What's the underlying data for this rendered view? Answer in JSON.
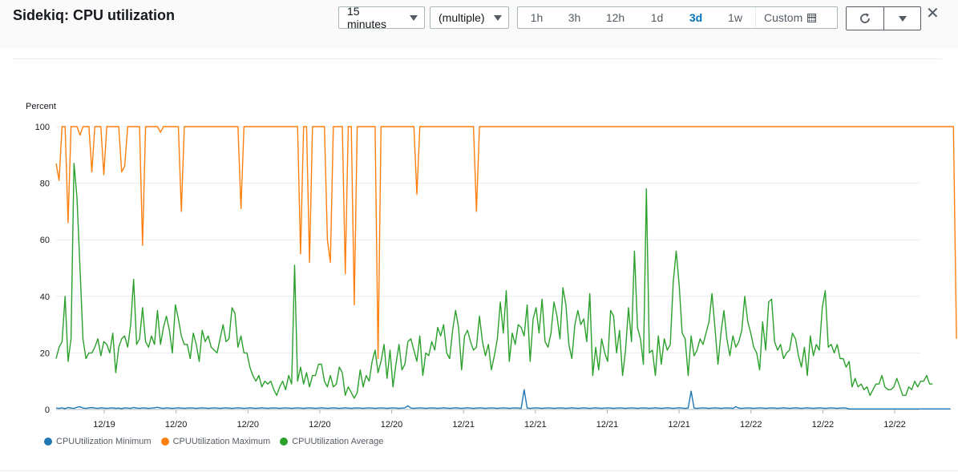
{
  "header": {
    "title": "Sidekiq: CPU utilization",
    "period_select": "15 minutes",
    "stat_select": "(multiple)",
    "ranges": [
      {
        "label": "1h",
        "active": false
      },
      {
        "label": "3h",
        "active": false
      },
      {
        "label": "12h",
        "active": false
      },
      {
        "label": "1d",
        "active": false
      },
      {
        "label": "3d",
        "active": true
      },
      {
        "label": "1w",
        "active": false
      }
    ],
    "custom_label": "Custom",
    "close_symbol": "✕"
  },
  "colors": {
    "minimum": "#1f77b4",
    "maximum": "#ff7f0e",
    "average": "#2ca02c",
    "active_range": "#0073bb"
  },
  "chart_data": {
    "type": "line",
    "ylabel": "Percent",
    "ylim": [
      0,
      100
    ],
    "yticks": [
      0,
      20,
      40,
      60,
      80,
      100
    ],
    "xticks": [
      "12/19",
      "12/20",
      "12/20",
      "12/20",
      "12/20",
      "12/21",
      "12/21",
      "12/21",
      "12/21",
      "12/22",
      "12/22",
      "12/22"
    ],
    "xlim": [
      0,
      288
    ],
    "x_step": 1,
    "grid": "horizontal",
    "legend_position": "bottom-left",
    "series": [
      {
        "name": "CPUUtilization Minimum",
        "color": "#1f77b4",
        "values": [
          0.5,
          0.4,
          0.6,
          0.3,
          0.7,
          0.5,
          0.4,
          0.8,
          1,
          0.5,
          0.4,
          0.6,
          0.7,
          0.5,
          0.4,
          0.6,
          0.5,
          0.4,
          0.5,
          0.6,
          0.4,
          0.5,
          0.3,
          0.6,
          0.5,
          0.4,
          0.7,
          0.5,
          0.4,
          0.6,
          0.5,
          0.4,
          0.5,
          0.6,
          0.8,
          0.5,
          0.4,
          0.6,
          0.5,
          0.4,
          0.5,
          0.6,
          0.5,
          0.4,
          0.5,
          0.6,
          0.5,
          0.4,
          0.5,
          0.6,
          0.5,
          0.4,
          0.5,
          0.6,
          0.5,
          0.4,
          0.5,
          0.6,
          0.5,
          0.4,
          0.5,
          0.6,
          0.5,
          0.4,
          0.5,
          0.6,
          0.5,
          0.4,
          0.5,
          0.6,
          0.5,
          0.4,
          0.5,
          0.6,
          0.5,
          0.4,
          0.5,
          0.6,
          0.5,
          0.4,
          0.5,
          0.6,
          0.5,
          0.4,
          0.5,
          0.6,
          0.5,
          0.4,
          0.5,
          0.6,
          0.5,
          0.4,
          0.5,
          0.6,
          0.5,
          0.4,
          0.5,
          0.6,
          0.5,
          0.4,
          0.5,
          0.6,
          0.5,
          0.4,
          0.5,
          0.6,
          0.5,
          0.4,
          0.5,
          0.6,
          0.5,
          0.4,
          0.5,
          0.6,
          0.5,
          0.4,
          0.5,
          0.6,
          1.3,
          0.5,
          0.4,
          0.5,
          0.6,
          0.5,
          0.4,
          0.5,
          0.6,
          0.5,
          0.4,
          0.5,
          0.6,
          0.5,
          0.4,
          0.5,
          0.6,
          0.5,
          0.4,
          0.5,
          0.6,
          0.5,
          0.4,
          0.5,
          0.6,
          0.5,
          0.4,
          0.5,
          0.6,
          0.5,
          0.4,
          0.5,
          0.6,
          0.5,
          0.4,
          0.5,
          0.6,
          0.5,
          0.4,
          7,
          0.5,
          0.4,
          0.5,
          0.6,
          0.5,
          0.4,
          0.5,
          0.6,
          0.5,
          0.4,
          0.5,
          0.6,
          0.5,
          0.4,
          0.5,
          0.6,
          0.5,
          0.4,
          0.5,
          0.6,
          0.5,
          0.4,
          0.5,
          0.6,
          0.5,
          0.4,
          0.5,
          0.6,
          0.5,
          0.4,
          0.5,
          0.6,
          0.5,
          0.4,
          0.5,
          0.6,
          0.5,
          0.4,
          0.5,
          0.6,
          0.5,
          0.4,
          0.5,
          0.6,
          0.5,
          0.4,
          0.5,
          0.6,
          0.5,
          0.4,
          0.5,
          0.6,
          0.5,
          0.4,
          0.5,
          6.5,
          0.5,
          0.4,
          0.5,
          0.6,
          0.5,
          0.4,
          0.5,
          0.6,
          0.5,
          0.4,
          0.5,
          0.6,
          0.5,
          0.4,
          1,
          0.5,
          0.4,
          0.5,
          0.6,
          0.5,
          0.4,
          0.5,
          0.6,
          0.5,
          0.4,
          0.5,
          0.6,
          0.5,
          0.4,
          0.5,
          0.6,
          0.5,
          0.4,
          0.5,
          0.6,
          0.5,
          0.4,
          0.5,
          0.6,
          0.5,
          0.4,
          0.5,
          0.6,
          0.5,
          0.4,
          0.5,
          0.6,
          0.5,
          0.4,
          0.5,
          0.6,
          0.5,
          0.2,
          0.2,
          0.2,
          0.2,
          0.2,
          0.2,
          0.2,
          0.2,
          0.2,
          0.2,
          0.2,
          0.2,
          0.2,
          0.2,
          0.2,
          0.2,
          0.2,
          0.2,
          0.2,
          0.2,
          0.2,
          0.2,
          0.2,
          0.2,
          0.2,
          0.2,
          0.2,
          0.2,
          0.2,
          0.2,
          0.2,
          0.2,
          0.2,
          0.2,
          0.2
        ]
      },
      {
        "name": "CPUUtilization Maximum",
        "color": "#ff7f0e",
        "values": [
          87,
          81,
          100,
          100,
          66,
          100,
          100,
          100,
          97,
          100,
          100,
          100,
          84,
          100,
          100,
          100,
          83,
          100,
          100,
          100,
          100,
          100,
          84,
          86,
          100,
          100,
          100,
          100,
          100,
          58,
          100,
          100,
          100,
          100,
          100,
          98,
          100,
          100,
          100,
          100,
          100,
          100,
          70,
          100,
          100,
          100,
          100,
          100,
          100,
          100,
          100,
          100,
          100,
          100,
          100,
          100,
          100,
          100,
          100,
          100,
          100,
          100,
          71,
          100,
          100,
          100,
          100,
          100,
          100,
          100,
          100,
          100,
          100,
          100,
          100,
          100,
          100,
          100,
          100,
          100,
          100,
          100,
          55,
          100,
          100,
          52,
          100,
          100,
          100,
          100,
          100,
          60,
          52,
          100,
          100,
          100,
          100,
          48,
          100,
          100,
          37,
          100,
          100,
          100,
          100,
          100,
          100,
          100,
          18,
          100,
          100,
          100,
          100,
          100,
          100,
          100,
          100,
          100,
          100,
          100,
          100,
          76,
          100,
          100,
          100,
          100,
          100,
          100,
          100,
          100,
          100,
          100,
          100,
          100,
          100,
          100,
          100,
          100,
          100,
          100,
          100,
          70,
          100,
          100,
          100,
          100,
          100,
          100,
          100,
          100,
          100,
          100,
          100,
          100,
          100,
          100,
          100,
          100,
          100,
          100,
          100,
          100,
          100,
          100,
          100,
          100,
          100,
          100,
          100,
          100,
          100,
          100,
          100,
          100,
          100,
          100,
          100,
          100,
          100,
          100,
          100,
          100,
          100,
          100,
          100,
          100,
          100,
          100,
          100,
          100,
          100,
          100,
          100,
          100,
          100,
          100,
          100,
          100,
          100,
          100,
          100,
          100,
          100,
          100,
          100,
          100,
          100,
          100,
          100,
          100,
          100,
          100,
          100,
          100,
          100,
          100,
          100,
          100,
          100,
          100,
          100,
          100,
          100,
          100,
          100,
          100,
          100,
          100,
          100,
          100,
          100,
          100,
          100,
          100,
          100,
          100,
          100,
          100,
          100,
          100,
          100,
          100,
          100,
          100,
          100,
          100,
          100,
          100,
          100,
          100,
          100,
          100,
          100,
          100,
          100,
          100,
          100,
          100,
          100,
          100,
          100,
          100,
          100,
          100,
          100,
          100,
          100,
          100,
          100,
          100,
          100,
          100,
          100,
          100,
          100,
          100,
          100,
          100,
          100,
          100,
          100,
          100,
          100,
          100,
          100,
          100,
          100,
          100,
          100,
          100,
          100,
          100,
          100,
          100,
          100,
          100,
          100,
          100,
          100,
          100,
          100,
          100,
          25
        ]
      },
      {
        "name": "CPUUtilization Average",
        "color": "#2ca02c",
        "values": [
          18,
          22,
          24,
          40,
          17,
          25,
          87,
          75,
          50,
          25,
          18,
          20,
          20,
          22,
          25,
          19,
          24,
          23,
          20,
          27,
          13,
          22,
          25,
          26,
          22,
          30,
          46,
          23,
          25,
          36,
          24,
          22,
          26,
          23,
          35,
          23,
          29,
          33,
          28,
          20,
          37,
          32,
          26,
          23,
          23,
          18,
          27,
          23,
          17,
          28,
          24,
          26,
          22,
          21,
          20,
          25,
          30,
          24,
          25,
          36,
          34,
          22,
          26,
          20,
          20,
          15,
          12,
          10,
          12,
          8,
          10,
          9,
          10,
          7,
          5,
          8,
          10,
          7,
          12,
          9,
          51,
          10,
          15,
          9,
          13,
          8,
          12,
          12,
          16,
          16,
          10,
          8,
          12,
          8,
          9,
          15,
          13,
          5,
          8,
          6,
          4,
          6,
          14,
          8,
          12,
          10,
          17,
          21,
          13,
          17,
          23,
          11,
          21,
          8,
          16,
          23,
          14,
          16,
          24,
          25,
          21,
          17,
          26,
          12,
          20,
          19,
          24,
          21,
          29,
          26,
          30,
          20,
          18,
          28,
          35,
          29,
          14,
          26,
          28,
          24,
          21,
          22,
          33,
          24,
          19,
          23,
          14,
          19,
          25,
          38,
          27,
          42,
          17,
          27,
          23,
          30,
          29,
          26,
          37,
          17,
          32,
          36,
          27,
          39,
          24,
          22,
          27,
          38,
          33,
          25,
          43,
          37,
          23,
          18,
          30,
          35,
          30,
          32,
          24,
          41,
          12,
          22,
          14,
          25,
          20,
          17,
          35,
          33,
          20,
          28,
          12,
          21,
          36,
          24,
          56,
          29,
          25,
          16,
          78,
          20,
          21,
          12,
          26,
          16,
          25,
          21,
          23,
          45,
          56,
          44,
          27,
          25,
          12,
          26,
          19,
          21,
          25,
          23,
          27,
          31,
          41,
          29,
          16,
          27,
          35,
          25,
          19,
          26,
          22,
          24,
          28,
          40,
          31,
          27,
          22,
          20,
          14,
          31,
          21,
          38,
          39,
          24,
          21,
          23,
          18,
          20,
          21,
          27,
          25,
          19,
          15,
          22,
          12,
          26,
          19,
          23,
          21,
          36,
          42,
          22,
          23,
          20,
          23,
          18,
          18,
          15,
          17,
          8,
          11,
          8,
          9,
          7,
          8,
          5,
          7,
          9,
          9,
          12,
          8,
          7,
          7,
          8,
          11,
          8,
          5,
          5,
          8,
          7,
          10,
          8,
          10,
          10,
          12,
          9,
          9
        ]
      }
    ]
  }
}
